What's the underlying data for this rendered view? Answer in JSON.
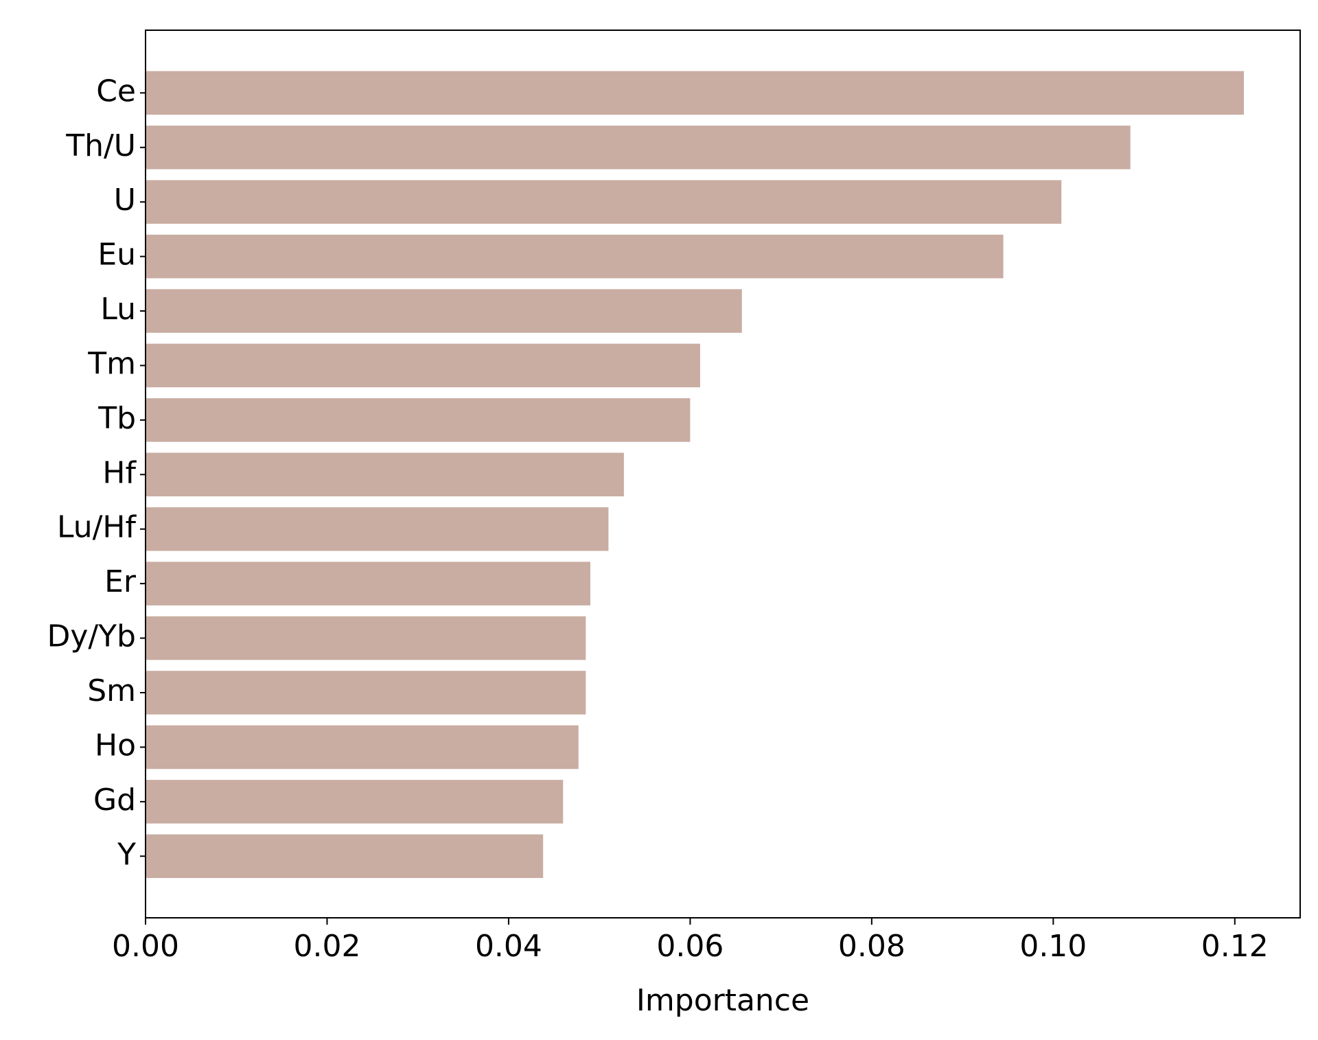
{
  "chart_data": {
    "type": "barh",
    "x_label": "Importance",
    "categories": [
      "Ce",
      "Th/U",
      "U",
      "Eu",
      "Lu",
      "Tm",
      "Tb",
      "Hf",
      "Lu/Hf",
      "Er",
      "Dy/Yb",
      "Sm",
      "Ho",
      "Gd",
      "Y"
    ],
    "values": [
      0.121,
      0.1085,
      0.1009,
      0.0945,
      0.0657,
      0.0611,
      0.06,
      0.0527,
      0.051,
      0.049,
      0.0485,
      0.0485,
      0.0477,
      0.046,
      0.0438
    ],
    "color": "#c9ada2",
    "xlim": [
      0,
      0.1272
    ],
    "xticks": [
      {
        "value": 0,
        "label": "0.00"
      },
      {
        "value": 0.02,
        "label": "0.02"
      },
      {
        "value": 0.04,
        "label": "0.04"
      },
      {
        "value": 0.06,
        "label": "0.06"
      },
      {
        "value": 0.08,
        "label": "0.08"
      },
      {
        "value": 0.1,
        "label": "0.10"
      },
      {
        "value": 0.12,
        "label": "0.12"
      }
    ]
  }
}
